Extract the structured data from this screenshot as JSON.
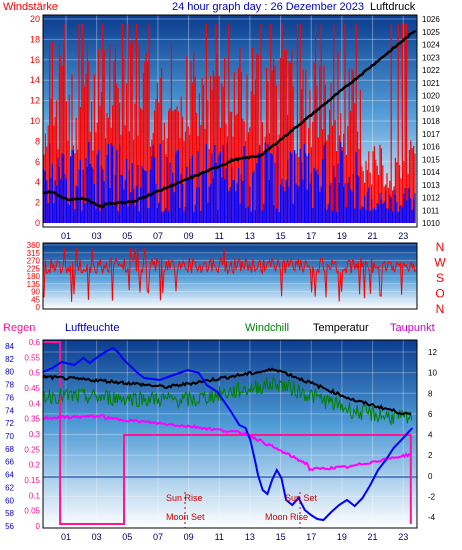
{
  "header": {
    "left_label": "Windstärke",
    "title": "24 hour graph day : 26 Dezember 2023",
    "right_label": "Luftdruck"
  },
  "panel_wind": {
    "y_left_ticks": [
      "20",
      "18",
      "16",
      "14",
      "12",
      "10",
      "8",
      "6",
      "4",
      "2",
      "0"
    ],
    "y_right_ticks": [
      "1026",
      "1025",
      "1024",
      "1023",
      "1022",
      "1021",
      "1020",
      "1019",
      "1018",
      "1017",
      "1016",
      "1015",
      "1014",
      "1013",
      "1012",
      "1011",
      "1010"
    ],
    "x_ticks": [
      "01",
      "03",
      "05",
      "07",
      "09",
      "11",
      "13",
      "15",
      "17",
      "19",
      "21",
      "23"
    ]
  },
  "panel_direction": {
    "y_ticks": [
      "360",
      "315",
      "270",
      "225",
      "180",
      "135",
      "90",
      "45",
      "0"
    ],
    "compass": [
      "N",
      "W",
      "S",
      "O",
      "N"
    ]
  },
  "panel_climate": {
    "labels": {
      "regen": "Regen",
      "luftfeuchte": "Luftfeuchte",
      "windchill": "Windchill",
      "temperatur": "Temperatur",
      "taupunkt": "Taupunkt"
    },
    "humidity_ticks": [
      "84",
      "82",
      "80",
      "78",
      "76",
      "74",
      "72",
      "70",
      "68",
      "66",
      "64",
      "62",
      "60",
      "58",
      "56"
    ],
    "rain_ticks": [
      "0.6",
      "0.55",
      "0.5",
      "0.45",
      "0.4",
      "0.35",
      "0.3",
      "0.25",
      "0.2",
      "0.15",
      "0.1",
      "0.05",
      "0"
    ],
    "temp_ticks": [
      "12",
      "10",
      "8",
      "6",
      "4",
      "2",
      "0",
      "-2",
      "-4"
    ],
    "x_ticks": [
      "01",
      "03",
      "05",
      "07",
      "09",
      "11",
      "13",
      "15",
      "17",
      "19",
      "21",
      "23"
    ],
    "events": {
      "sun_rise": "Sun Rise",
      "sun_set": "Sun Set",
      "moon_set": "Moon Set",
      "moon_rise": "Moon Rise"
    }
  },
  "colors": {
    "wind_gust": "#ff0000",
    "wind_avg": "#0000ff",
    "pressure": "#000000",
    "direction": "#ff0000",
    "humidity": "#0000ff",
    "windchill": "#008000",
    "temperature": "#000000",
    "dewpoint": "#ff00ff",
    "rain": "#ff1493"
  }
}
